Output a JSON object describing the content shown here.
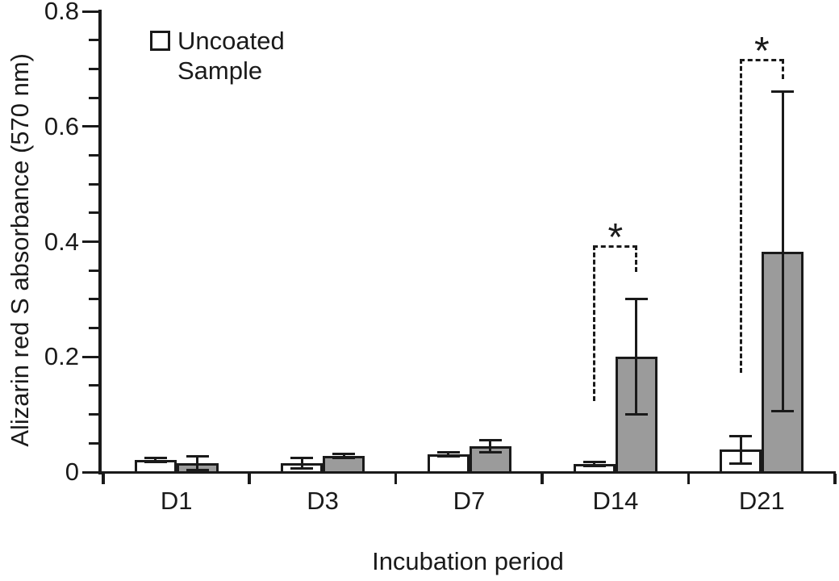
{
  "figure": {
    "legend": {
      "marker": "open-square-icon",
      "label": "Uncoated Sample",
      "lines": [
        "Uncoated",
        "Sample"
      ]
    }
  },
  "chart_data": {
    "type": "bar",
    "title": "",
    "xlabel": "Incubation period",
    "ylabel": "Alizarin red S absorbance  (570 nm)",
    "categories": [
      "D1",
      "D3",
      "D7",
      "D14",
      "D21"
    ],
    "ylim": [
      0,
      0.8
    ],
    "yticks": [
      0,
      0.2,
      0.4,
      0.6,
      0.8
    ],
    "ytick_labels": [
      "0",
      "0.2",
      "0.4",
      "0.6",
      "0.8"
    ],
    "minor_tick_step": 0.05,
    "grid": false,
    "legend_position": "top-left-inside",
    "series": [
      {
        "name": "Uncoated Sample",
        "legend_shown": true,
        "fill": "#ffffff",
        "values": [
          0.021,
          0.016,
          0.031,
          0.014,
          0.039
        ],
        "errors": [
          0.004,
          0.009,
          0.003,
          0.003,
          0.024
        ]
      },
      {
        "name": "",
        "legend_shown": false,
        "fill": "#9b9b9b",
        "values": [
          0.016,
          0.028,
          0.045,
          0.2,
          0.383
        ],
        "errors": [
          0.012,
          0.004,
          0.01,
          0.1,
          0.277
        ]
      }
    ],
    "significance_brackets": [
      {
        "category": "D14",
        "label": "*",
        "top": 0.394,
        "left_leg_bottom": 0.123,
        "right_leg_bottom": 0.348
      },
      {
        "category": "D21",
        "label": "*",
        "top": 0.718,
        "left_leg_bottom": 0.173,
        "right_leg_bottom": 0.682
      }
    ],
    "colors": {
      "bar_fill_white": "#ffffff",
      "bar_fill_gray": "#9b9b9b",
      "line": "#1a1a1a"
    }
  }
}
